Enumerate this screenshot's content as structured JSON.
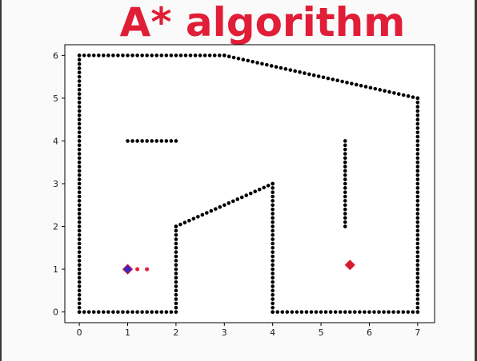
{
  "title": "A* algorithm",
  "chart_data": {
    "type": "scatter",
    "title": "A* algorithm",
    "xlabel": "",
    "ylabel": "",
    "xlim": [
      -0.3,
      7.35
    ],
    "ylim": [
      -0.25,
      6.25
    ],
    "x_ticks": [
      "0",
      "1",
      "2",
      "3",
      "4",
      "5",
      "6",
      "7"
    ],
    "y_ticks": [
      "0",
      "1",
      "2",
      "3",
      "4",
      "5",
      "6"
    ],
    "grid": false,
    "obstacle_color": "#000000",
    "path_color": "#e01e37",
    "start_color": "#2a2ad8",
    "start_edge_color": "#b0124a",
    "goal_color": "#d81b2f",
    "obstacles": [
      {
        "from": [
          0,
          0
        ],
        "to": [
          2,
          0
        ]
      },
      {
        "from": [
          2,
          0
        ],
        "to": [
          2,
          2
        ]
      },
      {
        "from": [
          2,
          2
        ],
        "to": [
          4,
          3
        ]
      },
      {
        "from": [
          4,
          3
        ],
        "to": [
          4,
          0
        ]
      },
      {
        "from": [
          4,
          0
        ],
        "to": [
          7,
          0
        ]
      },
      {
        "from": [
          7,
          0
        ],
        "to": [
          7,
          5
        ]
      },
      {
        "from": [
          7,
          5
        ],
        "to": [
          3,
          6
        ]
      },
      {
        "from": [
          3,
          6
        ],
        "to": [
          0,
          6
        ]
      },
      {
        "from": [
          0,
          6
        ],
        "to": [
          0,
          0
        ]
      },
      {
        "from": [
          1,
          4
        ],
        "to": [
          2,
          4
        ]
      },
      {
        "from": [
          5.5,
          4
        ],
        "to": [
          5.5,
          2
        ]
      }
    ],
    "start": {
      "x": 1,
      "y": 1
    },
    "goal": {
      "x": 5.6,
      "y": 1.1
    },
    "path": [
      {
        "x": 1.2,
        "y": 1
      },
      {
        "x": 1.4,
        "y": 1
      }
    ]
  }
}
